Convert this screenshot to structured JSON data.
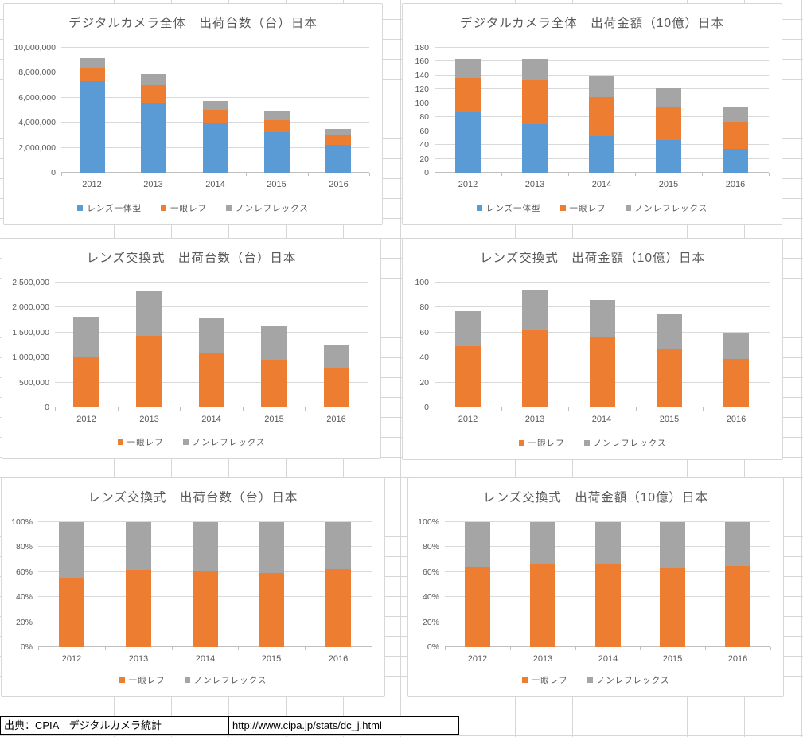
{
  "page": {
    "source_label": "出典：CPIA　デジタルカメラ統計",
    "source_url": "http://www.cipa.jp/stats/dc_j.html"
  },
  "colors": {
    "lens_integrated_blue": "#5B9BD5",
    "dslr_orange": "#ED7D31",
    "nonreflex_gray": "#A5A5A5",
    "text_gray": "#595959",
    "gridline": "#D9D9D9"
  },
  "chart_data": [
    {
      "type": "bar",
      "stacked": true,
      "title": "デジタルカメラ全体　出荷台数（台）日本",
      "categories": [
        "2012",
        "2013",
        "2014",
        "2015",
        "2016"
      ],
      "y_max": 10000000,
      "ylim": [
        0,
        10000000
      ],
      "grid": true,
      "legend_position": "bottom",
      "y_ticks": [
        "0",
        "2,000,000",
        "4,000,000",
        "6,000,000",
        "8,000,000",
        "10,000,000"
      ],
      "series": [
        {
          "name": "レンズ一体型",
          "color": "#5B9BD5",
          "values": [
            7330000,
            5550000,
            3970000,
            3270000,
            2230000
          ]
        },
        {
          "name": "一眼レフ",
          "color": "#ED7D31",
          "values": [
            1010000,
            1440000,
            1080000,
            960000,
            790000
          ]
        },
        {
          "name": "ノンレフレックス",
          "color": "#A5A5A5",
          "values": [
            810000,
            890000,
            710000,
            660000,
            470000
          ]
        }
      ]
    },
    {
      "type": "bar",
      "stacked": true,
      "title": "デジタルカメラ全体　出荷金額（10億）日本",
      "categories": [
        "2012",
        "2013",
        "2014",
        "2015",
        "2016"
      ],
      "y_max": 180,
      "ylim": [
        0,
        180
      ],
      "grid": true,
      "legend_position": "bottom",
      "y_ticks": [
        "0",
        "20",
        "40",
        "60",
        "80",
        "100",
        "120",
        "140",
        "160",
        "180"
      ],
      "series": [
        {
          "name": "レンズ一体型",
          "color": "#5B9BD5",
          "values": [
            87,
            70,
            52.5,
            46.5,
            34
          ]
        },
        {
          "name": "一眼レフ",
          "color": "#ED7D31",
          "values": [
            49,
            62.5,
            57,
            47,
            39
          ]
        },
        {
          "name": "ノンレフレックス",
          "color": "#A5A5A5",
          "values": [
            28,
            31.5,
            29,
            27.5,
            21
          ]
        }
      ]
    },
    {
      "type": "bar",
      "stacked": true,
      "title": "レンズ交換式　出荷台数（台）日本",
      "categories": [
        "2012",
        "2013",
        "2014",
        "2015",
        "2016"
      ],
      "y_max": 2500000,
      "ylim": [
        0,
        2500000
      ],
      "grid": true,
      "legend_position": "bottom",
      "y_ticks": [
        "0",
        "500,000",
        "1,000,000",
        "1,500,000",
        "2,000,000",
        "2,500,000"
      ],
      "series": [
        {
          "name": "一眼レフ",
          "color": "#ED7D31",
          "values": [
            1010000,
            1440000,
            1080000,
            960000,
            790000
          ]
        },
        {
          "name": "ノンレフレックス",
          "color": "#A5A5A5",
          "values": [
            810000,
            890000,
            710000,
            660000,
            470000
          ]
        }
      ]
    },
    {
      "type": "bar",
      "stacked": true,
      "title": "レンズ交換式　出荷金額（10億）日本",
      "categories": [
        "2012",
        "2013",
        "2014",
        "2015",
        "2016"
      ],
      "y_max": 100,
      "ylim": [
        0,
        100
      ],
      "grid": true,
      "legend_position": "bottom",
      "y_ticks": [
        "0",
        "20",
        "40",
        "60",
        "80",
        "100"
      ],
      "series": [
        {
          "name": "一眼レフ",
          "color": "#ED7D31",
          "values": [
            49,
            62.5,
            57,
            47,
            39
          ]
        },
        {
          "name": "ノンレフレックス",
          "color": "#A5A5A5",
          "values": [
            28,
            31.5,
            29,
            27.5,
            21
          ]
        }
      ]
    },
    {
      "type": "bar",
      "stacked": true,
      "percent_stacked": true,
      "title": "レンズ交換式　出荷台数（台）日本",
      "categories": [
        "2012",
        "2013",
        "2014",
        "2015",
        "2016"
      ],
      "y_max": 100,
      "ylim": [
        0,
        100
      ],
      "grid": true,
      "legend_position": "bottom",
      "y_ticks": [
        "0%",
        "20%",
        "40%",
        "60%",
        "80%",
        "100%"
      ],
      "series": [
        {
          "name": "一眼レフ",
          "color": "#ED7D31",
          "values": [
            55.5,
            61.8,
            60.3,
            59.3,
            62.7
          ]
        },
        {
          "name": "ノンレフレックス",
          "color": "#A5A5A5",
          "values": [
            44.5,
            38.2,
            39.7,
            40.7,
            37.3
          ]
        }
      ]
    },
    {
      "type": "bar",
      "stacked": true,
      "percent_stacked": true,
      "title": "レンズ交換式　出荷金額（10億）日本",
      "categories": [
        "2012",
        "2013",
        "2014",
        "2015",
        "2016"
      ],
      "y_max": 100,
      "ylim": [
        0,
        100
      ],
      "grid": true,
      "legend_position": "bottom",
      "y_ticks": [
        "0%",
        "20%",
        "40%",
        "60%",
        "80%",
        "100%"
      ],
      "series": [
        {
          "name": "一眼レフ",
          "color": "#ED7D31",
          "values": [
            63.6,
            66.5,
            66.3,
            63.1,
            65.0
          ]
        },
        {
          "name": "ノンレフレックス",
          "color": "#A5A5A5",
          "values": [
            36.4,
            33.5,
            33.7,
            36.9,
            35.0
          ]
        }
      ]
    }
  ]
}
